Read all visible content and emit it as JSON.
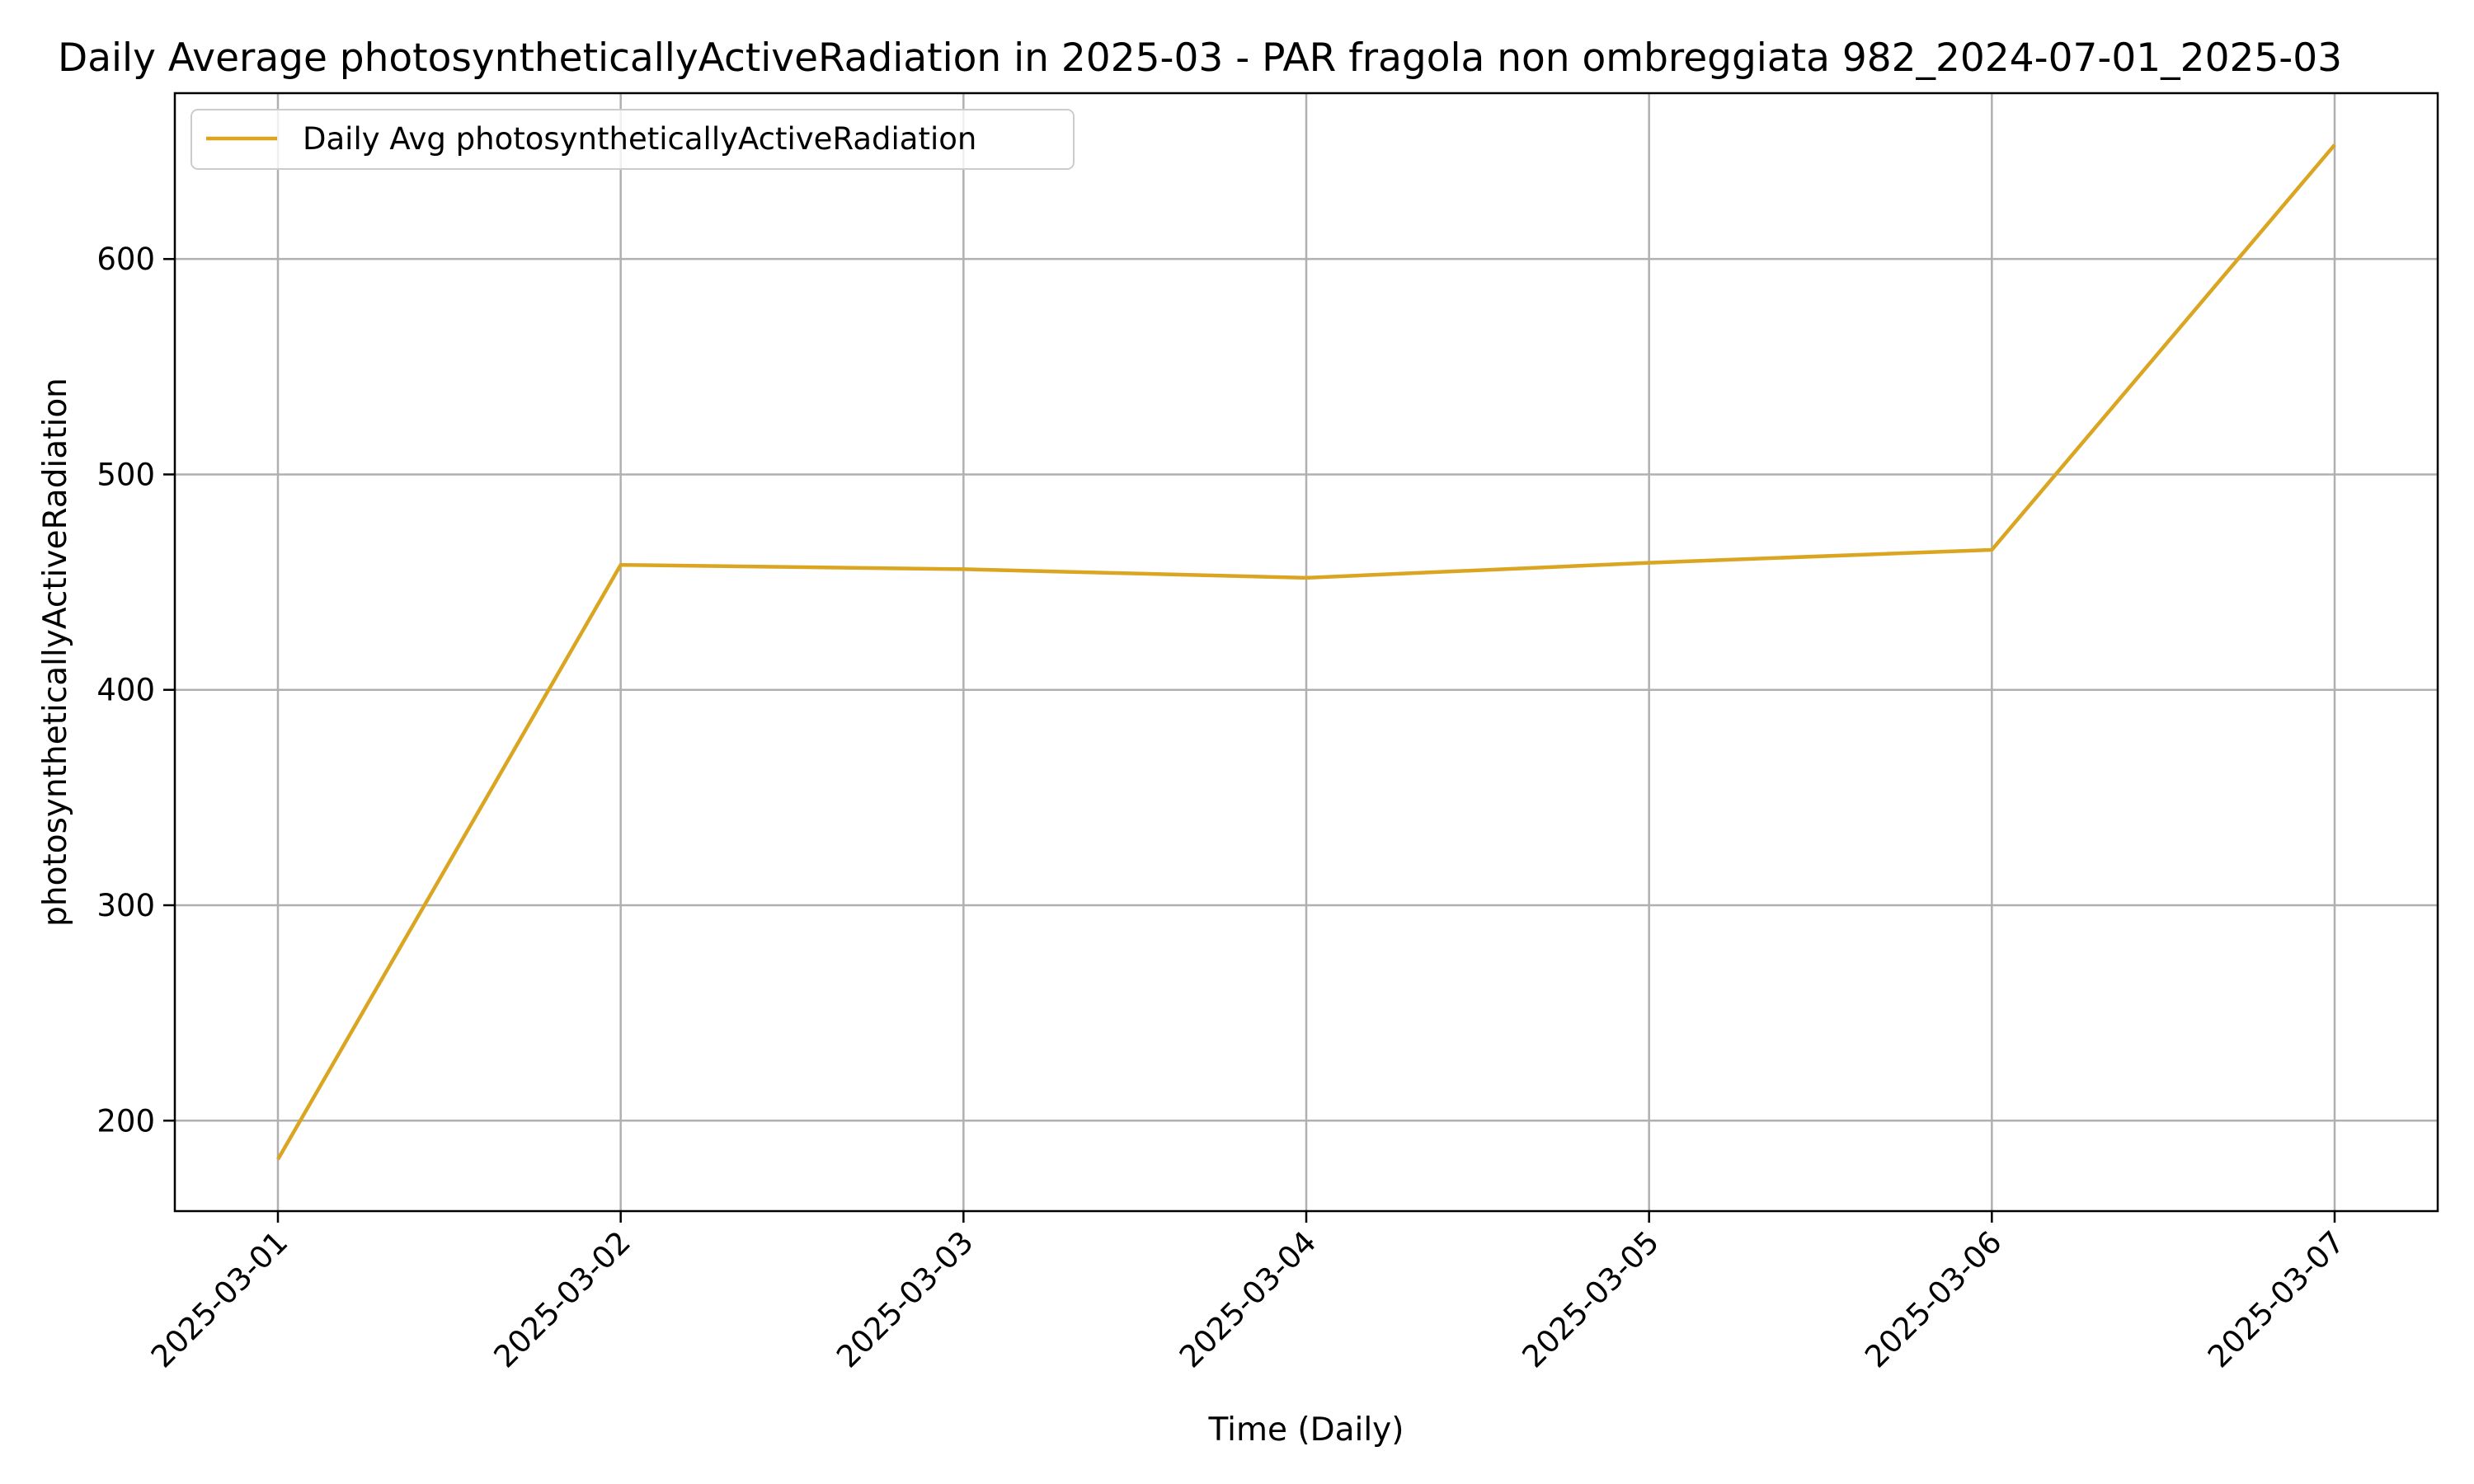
{
  "chart_data": {
    "type": "line",
    "title": "Daily Average photosyntheticallyActiveRadiation in 2025-03 - PAR fragola non ombreggiata 982_2024-07-01_2025-03",
    "xlabel": "Time (Daily)",
    "ylabel": "photosyntheticallyActiveRadiation",
    "x": [
      "2025-03-01",
      "2025-03-02",
      "2025-03-03",
      "2025-03-04",
      "2025-03-05",
      "2025-03-06",
      "2025-03-07"
    ],
    "series": [
      {
        "name": "Daily Avg photosyntheticallyActiveRadiation",
        "values": [
          182,
          458,
          456,
          452,
          459,
          465,
          653
        ],
        "color": "#DAA520"
      }
    ],
    "yticks": [
      200,
      300,
      400,
      500,
      600
    ],
    "ylim": [
      158,
      677
    ],
    "grid": true,
    "legend_position": "top-left"
  }
}
